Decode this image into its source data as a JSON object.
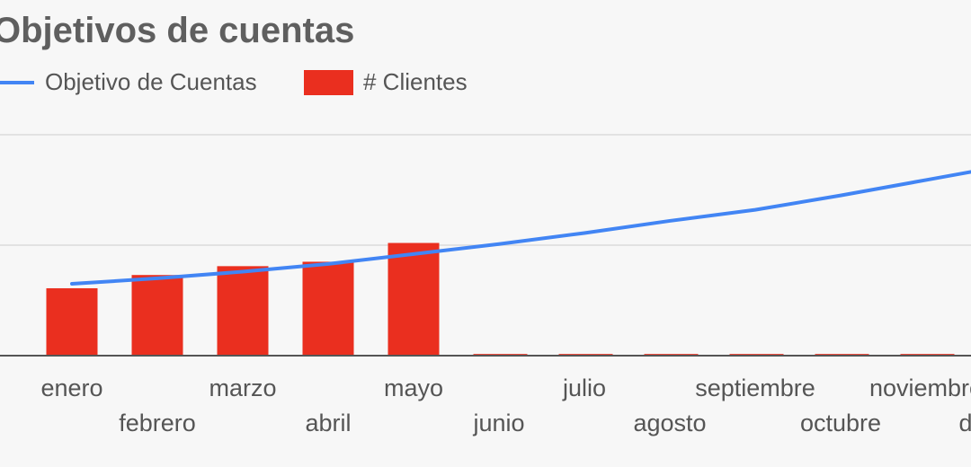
{
  "chart_data": {
    "type": "bar",
    "title": "Objetivos de cuentas",
    "categories": [
      "enero",
      "febrero",
      "marzo",
      "abril",
      "mayo",
      "junio",
      "julio",
      "agosto",
      "septiembre",
      "octubre",
      "noviembre",
      "diciembre"
    ],
    "series": [
      {
        "name": "# Clientes",
        "type": "bar",
        "color": "#ea2f1f",
        "values": [
          6.1,
          7.3,
          8.1,
          8.5,
          10.2,
          0.15,
          0.15,
          0.15,
          0.15,
          0.15,
          0.15,
          0.15
        ]
      },
      {
        "name": "Objetivo de Cuentas",
        "type": "line",
        "color": "#4285f4",
        "values": [
          6.5,
          7.0,
          7.6,
          8.3,
          9.2,
          10.1,
          11.1,
          12.2,
          13.2,
          14.5,
          15.9,
          17.3
        ]
      }
    ],
    "ylim": [
      0,
      20
    ],
    "grid": true,
    "legend_position": "top-left"
  }
}
